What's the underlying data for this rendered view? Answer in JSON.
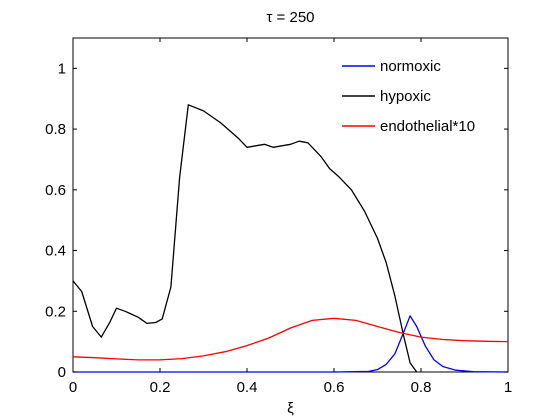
{
  "chart_data": {
    "type": "line",
    "title": "τ = 250",
    "xlabel": "ξ",
    "ylabel": "",
    "xlim": [
      0,
      1
    ],
    "ylim": [
      0,
      1.1
    ],
    "xticks": [
      0,
      0.2,
      0.4,
      0.6,
      0.8,
      1
    ],
    "xtick_labels": [
      "0",
      "0.2",
      "0.4",
      "0.6",
      "0.8",
      "1"
    ],
    "yticks": [
      0,
      0.2,
      0.4,
      0.6,
      0.8,
      1
    ],
    "ytick_labels": [
      "0",
      "0.2",
      "0.4",
      "0.6",
      "0.8",
      "1"
    ],
    "grid": false,
    "legend_position": "top-right",
    "series": [
      {
        "name": "normoxic",
        "color": "#0000ff",
        "x": [
          0,
          0.1,
          0.2,
          0.3,
          0.4,
          0.5,
          0.6,
          0.68,
          0.7,
          0.72,
          0.74,
          0.76,
          0.775,
          0.79,
          0.81,
          0.83,
          0.85,
          0.88,
          0.92,
          1.0
        ],
        "y": [
          0,
          0,
          0,
          0,
          0,
          0,
          0,
          0.002,
          0.008,
          0.025,
          0.06,
          0.13,
          0.185,
          0.15,
          0.085,
          0.04,
          0.018,
          0.006,
          0.001,
          0
        ]
      },
      {
        "name": "hypoxic",
        "color": "#000000",
        "x": [
          0,
          0.02,
          0.045,
          0.065,
          0.085,
          0.1,
          0.12,
          0.15,
          0.17,
          0.19,
          0.205,
          0.225,
          0.245,
          0.265,
          0.3,
          0.34,
          0.38,
          0.4,
          0.42,
          0.44,
          0.46,
          0.48,
          0.5,
          0.52,
          0.54,
          0.57,
          0.59,
          0.61,
          0.64,
          0.67,
          0.7,
          0.72,
          0.74,
          0.76,
          0.775,
          0.79
        ],
        "y": [
          0.3,
          0.265,
          0.15,
          0.115,
          0.165,
          0.21,
          0.2,
          0.18,
          0.16,
          0.163,
          0.175,
          0.28,
          0.64,
          0.88,
          0.86,
          0.82,
          0.77,
          0.74,
          0.745,
          0.75,
          0.74,
          0.745,
          0.75,
          0.76,
          0.755,
          0.71,
          0.67,
          0.645,
          0.6,
          0.53,
          0.44,
          0.36,
          0.25,
          0.12,
          0.03,
          0
        ]
      },
      {
        "name": "endothelial*10",
        "color": "#ff0000",
        "x": [
          0,
          0.05,
          0.1,
          0.15,
          0.2,
          0.25,
          0.3,
          0.35,
          0.4,
          0.45,
          0.5,
          0.55,
          0.6,
          0.65,
          0.7,
          0.75,
          0.8,
          0.85,
          0.9,
          0.95,
          1.0
        ],
        "y": [
          0.05,
          0.047,
          0.043,
          0.04,
          0.04,
          0.044,
          0.053,
          0.067,
          0.087,
          0.112,
          0.145,
          0.17,
          0.177,
          0.17,
          0.15,
          0.13,
          0.115,
          0.107,
          0.103,
          0.101,
          0.1
        ]
      }
    ]
  }
}
